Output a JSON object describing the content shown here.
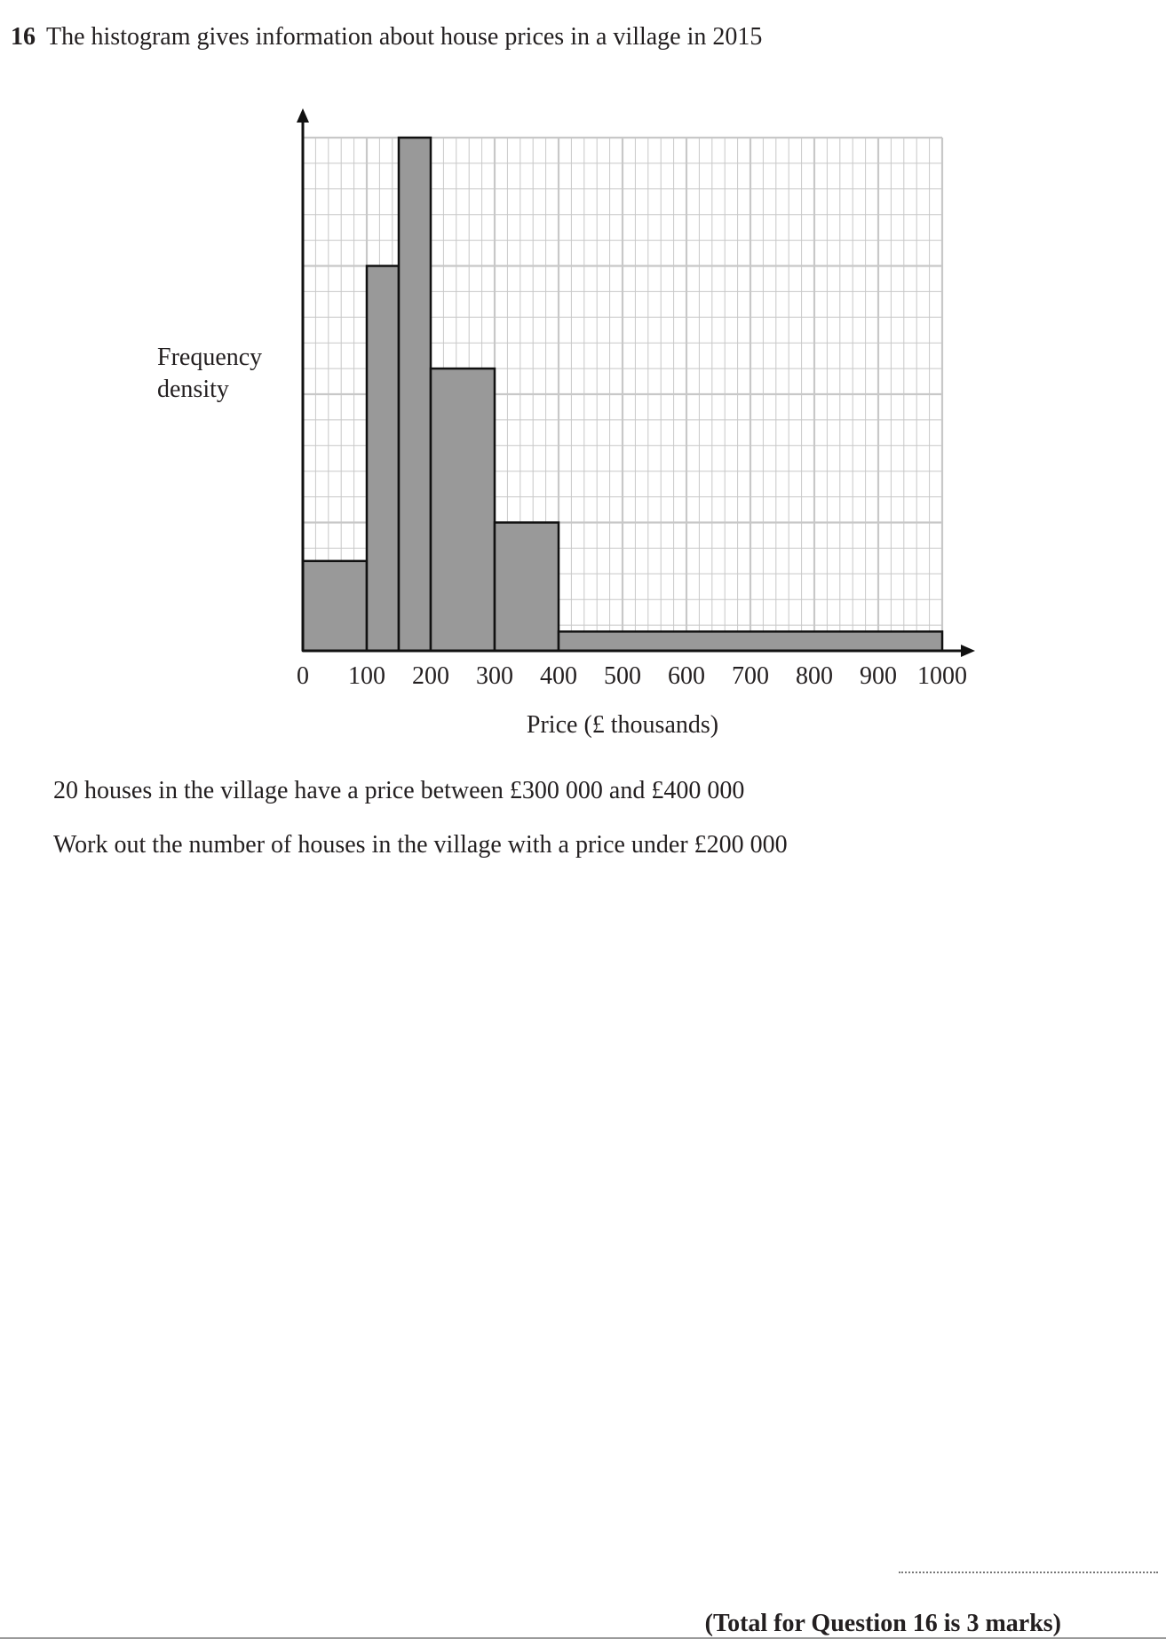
{
  "question": {
    "number": "16",
    "text": "The histogram gives information about house prices in a village in 2015"
  },
  "chart_data": {
    "type": "bar",
    "histogram": true,
    "title": "",
    "xlabel": "Price (£ thousands)",
    "ylabel_lines": [
      "Frequency",
      "density"
    ],
    "x_tick_labels": [
      "0",
      "100",
      "200",
      "300",
      "400",
      "500",
      "600",
      "700",
      "800",
      "900",
      "1000"
    ],
    "xlim": [
      0,
      1000
    ],
    "y_tick_labels": [],
    "grid": true,
    "bins": [
      {
        "start": 0,
        "end": 100,
        "density": 7
      },
      {
        "start": 100,
        "end": 150,
        "density": 30
      },
      {
        "start": 150,
        "end": 200,
        "density": 40
      },
      {
        "start": 200,
        "end": 300,
        "density": 22
      },
      {
        "start": 300,
        "end": 400,
        "density": 10
      },
      {
        "start": 400,
        "end": 1000,
        "density": 1.5
      }
    ],
    "bar_color": "#999999",
    "grid_color": "#c8c8c8"
  },
  "statements": [
    "20 houses in the village have a price between £300 000 and £400 000",
    "Work out the number of houses in the village with a price under £200 000"
  ],
  "total": "(Total for Question 16 is 3 marks)"
}
